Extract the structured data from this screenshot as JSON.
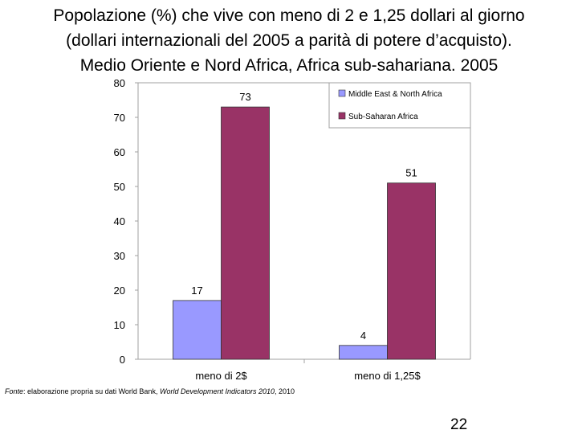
{
  "slide": {
    "title_lines": [
      "Popolazione (%) che vive con meno di 2 e 1,25 dollari al giorno",
      "(dollari internazionali del 2005 a parità di potere d’acquisto).",
      "Medio Oriente e Nord Africa, Africa sub-sahariana. 2005"
    ],
    "source": {
      "prefix": "Fonte",
      "middle": ": elaborazione propria su dati World Bank, ",
      "italic": "World Development Indicators 2010",
      "suffix": ", 2010"
    },
    "page_number": "22"
  },
  "chart_data": {
    "type": "bar",
    "categories": [
      "meno di 2$",
      "meno di 1,25$"
    ],
    "series": [
      {
        "name": "Middle East & North Africa",
        "values": [
          17,
          4
        ],
        "color": "#9999ff"
      },
      {
        "name": "Sub-Saharan Africa",
        "values": [
          73,
          51
        ],
        "color": "#993366"
      }
    ],
    "data_labels": [
      [
        "17",
        "4"
      ],
      [
        "73",
        "51"
      ]
    ],
    "ylim": [
      0,
      80
    ],
    "y_ticks": [
      0,
      10,
      20,
      30,
      40,
      50,
      60,
      70,
      80
    ],
    "legend_position": "top-right",
    "grid": false
  }
}
